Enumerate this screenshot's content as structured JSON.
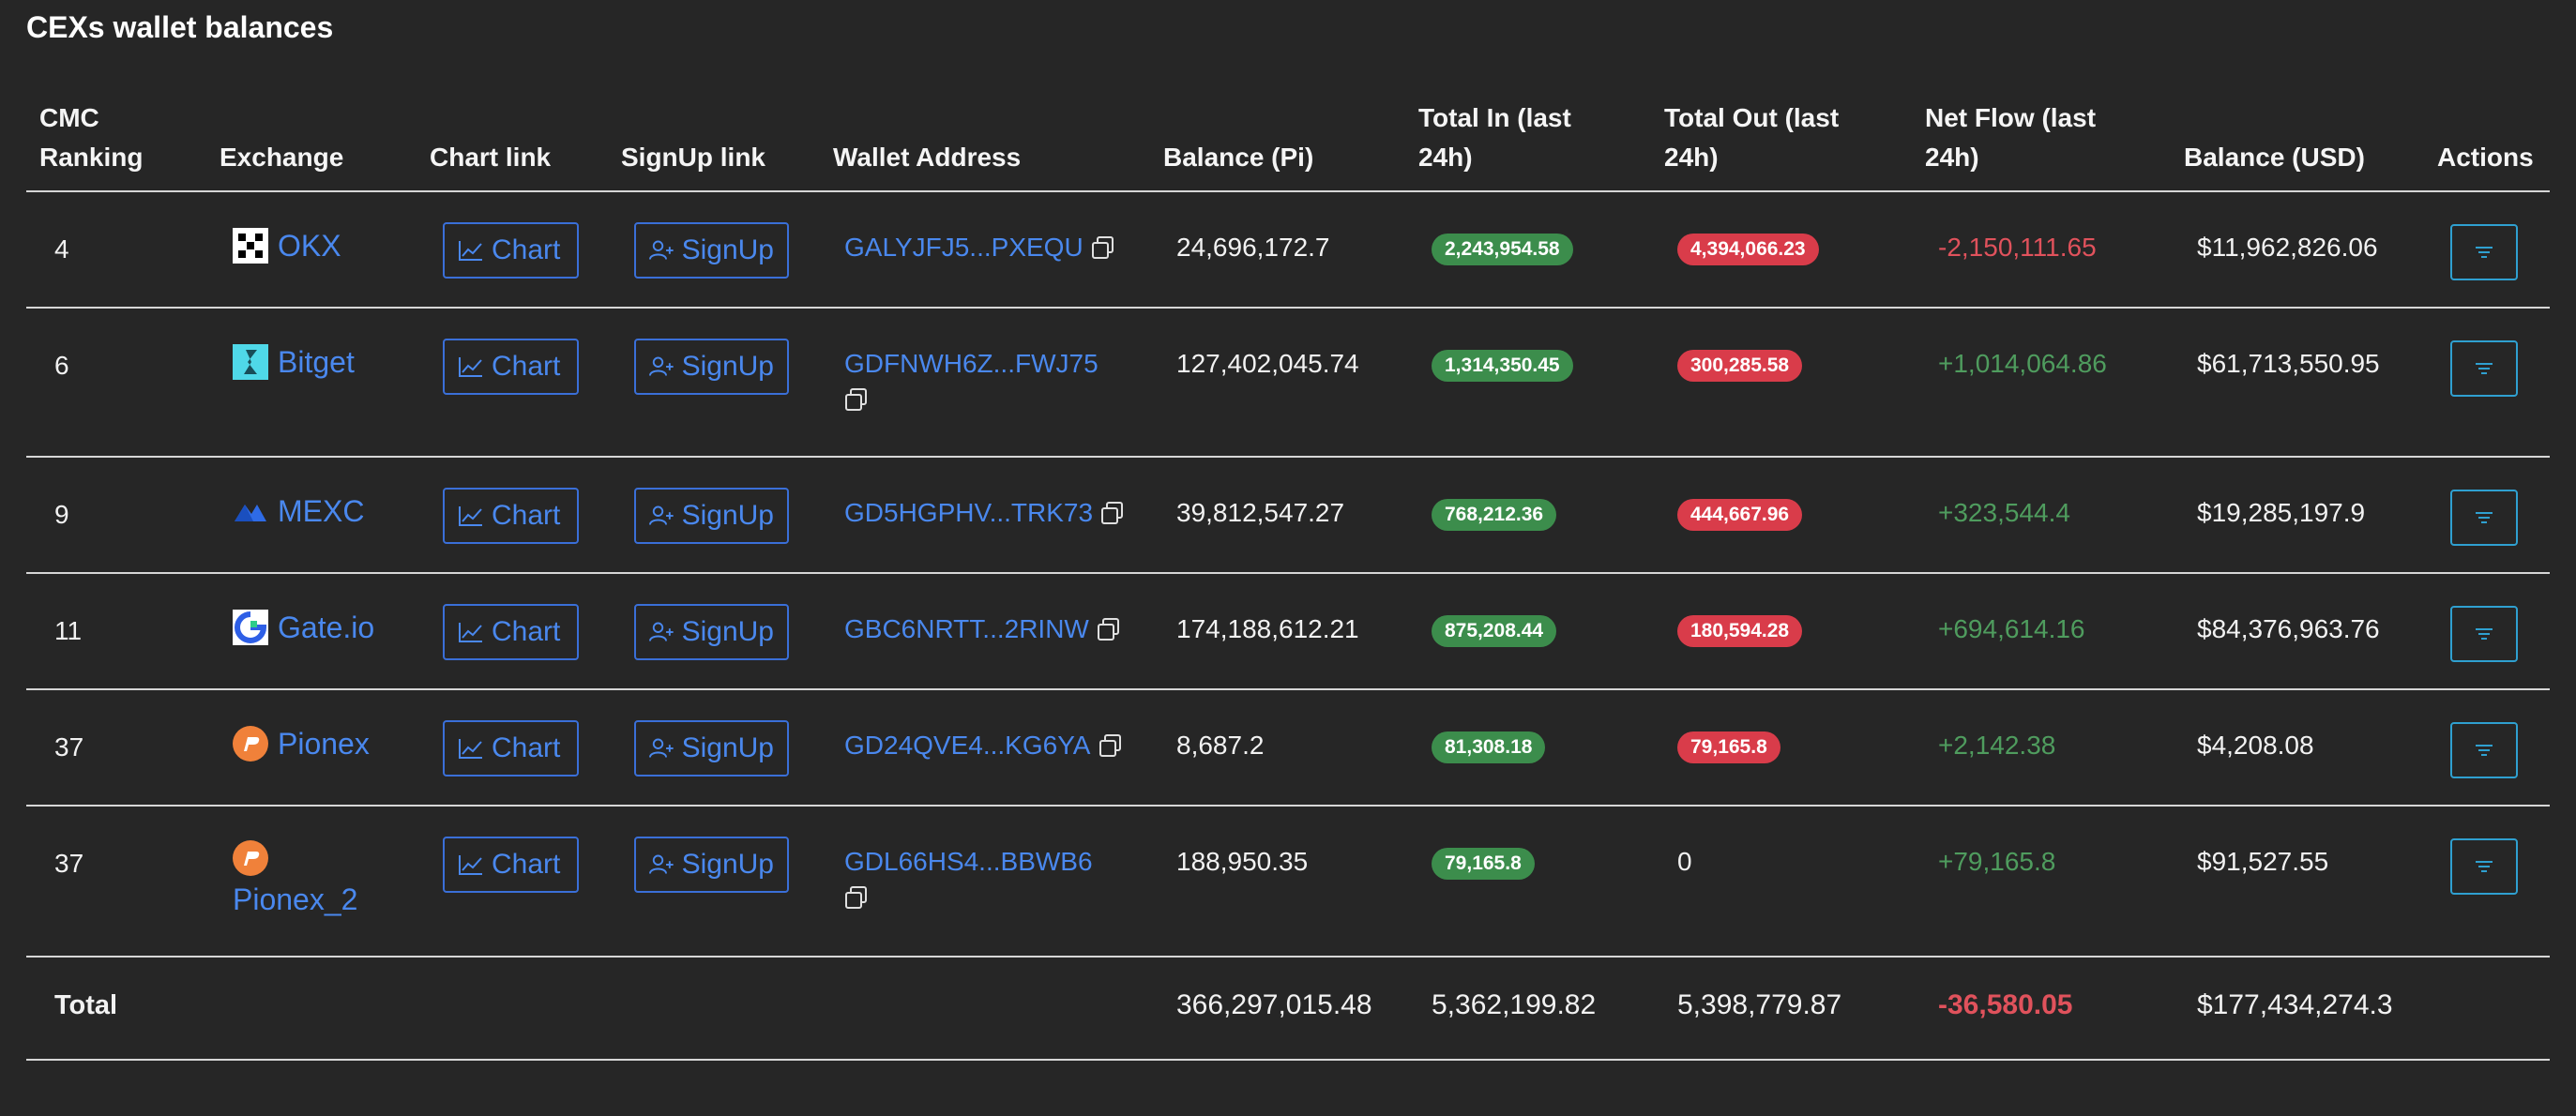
{
  "page": {
    "title": "CEXs wallet balances"
  },
  "headers": {
    "rank_line1": "CMC",
    "rank_line2": "Ranking",
    "exchange": "Exchange",
    "chart_link": "Chart link",
    "signup_link": "SignUp link",
    "wallet_address": "Wallet Address",
    "balance_pi": "Balance (Pi)",
    "total_in_line1": "Total In (last",
    "total_in_line2": "24h)",
    "total_out_line1": "Total Out (last",
    "total_out_line2": "24h)",
    "net_flow_line1": "Net Flow (last",
    "net_flow_line2": "24h)",
    "balance_usd": "Balance (USD)",
    "actions": "Actions"
  },
  "buttons": {
    "chart": "Chart",
    "signup": "SignUp"
  },
  "colors": {
    "link": "#4a88ee",
    "in_pill": "#3c8d4c",
    "out_pill": "#d93c4a",
    "negative": "#e0525c",
    "positive": "#4f9c5e",
    "action_border": "#2fa0d0"
  },
  "rows": [
    {
      "rank": "4",
      "exchange": "OKX",
      "icon": "okx-logo-icon",
      "address": "GALYJFJ5...PXEQU",
      "balance_pi": "24,696,172.7",
      "total_in": "2,243,954.58",
      "total_out": "4,394,066.23",
      "net_flow": "-2,150,111.65",
      "balance_usd": "$11,962,826.06"
    },
    {
      "rank": "6",
      "exchange": "Bitget",
      "icon": "bitget-logo-icon",
      "address": "GDFNWH6Z...FWJ75",
      "balance_pi": "127,402,045.74",
      "total_in": "1,314,350.45",
      "total_out": "300,285.58",
      "net_flow": "+1,014,064.86",
      "balance_usd": "$61,713,550.95"
    },
    {
      "rank": "9",
      "exchange": "MEXC",
      "icon": "mexc-logo-icon",
      "address": "GD5HGPHV...TRK73",
      "balance_pi": "39,812,547.27",
      "total_in": "768,212.36",
      "total_out": "444,667.96",
      "net_flow": "+323,544.4",
      "balance_usd": "$19,285,197.9"
    },
    {
      "rank": "11",
      "exchange": "Gate.io",
      "icon": "gateio-logo-icon",
      "address": "GBC6NRTT...2RINW",
      "balance_pi": "174,188,612.21",
      "total_in": "875,208.44",
      "total_out": "180,594.28",
      "net_flow": "+694,614.16",
      "balance_usd": "$84,376,963.76"
    },
    {
      "rank": "37",
      "exchange": "Pionex",
      "icon": "pionex-logo-icon",
      "address": "GD24QVE4...KG6YA",
      "balance_pi": "8,687.2",
      "total_in": "81,308.18",
      "total_out": "79,165.8",
      "net_flow": "+2,142.38",
      "balance_usd": "$4,208.08"
    },
    {
      "rank": "37",
      "exchange": "Pionex_2",
      "icon": "pionex-logo-icon",
      "address": "GDL66HS4...BBWB6",
      "balance_pi": "188,950.35",
      "total_in": "79,165.8",
      "total_out": "0",
      "net_flow": "+79,165.8",
      "balance_usd": "$91,527.55"
    }
  ],
  "total": {
    "label": "Total",
    "balance_pi": "366,297,015.48",
    "total_in": "5,362,199.82",
    "total_out": "5,398,779.87",
    "net_flow": "-36,580.05",
    "balance_usd": "$177,434,274.3"
  }
}
